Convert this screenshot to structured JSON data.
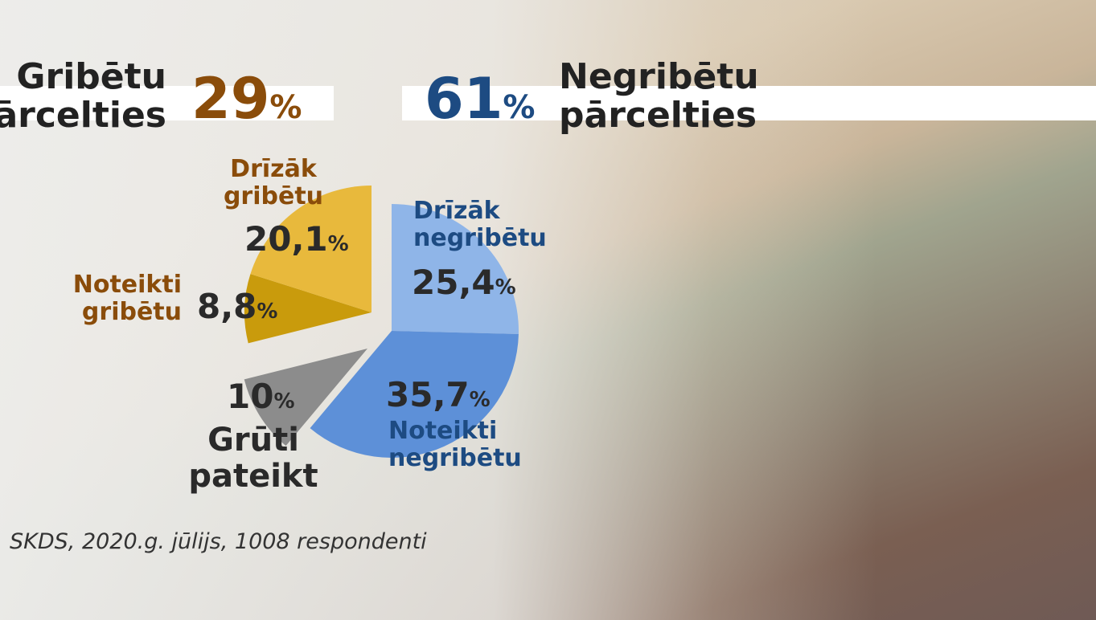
{
  "chart_data": {
    "type": "pie",
    "categories": [
      "Drīzāk negribētu",
      "Noteikti negribētu",
      "Grūti pateikt",
      "Noteikti gribētu",
      "Drīzāk gribētu"
    ],
    "values": [
      25.4,
      35.7,
      10,
      8.8,
      20.1
    ],
    "value_labels": [
      "25,4",
      "35,7",
      "10",
      "8,8",
      "20,1"
    ],
    "unit": "%",
    "colors": [
      "#8fb5e8",
      "#5d90d8",
      "#8c8c8c",
      "#c99b0c",
      "#e8b93c"
    ],
    "groups": [
      {
        "name": [
          "Gribētu",
          "pārcelties"
        ],
        "value": 29,
        "color": "#8a4c0a"
      },
      {
        "name": [
          "Negribētu",
          "pārcelties"
        ],
        "value": 61,
        "color": "#1d4b82"
      }
    ],
    "source": "SKDS, 2020.g. jūlijs, 1008 respondenti"
  }
}
